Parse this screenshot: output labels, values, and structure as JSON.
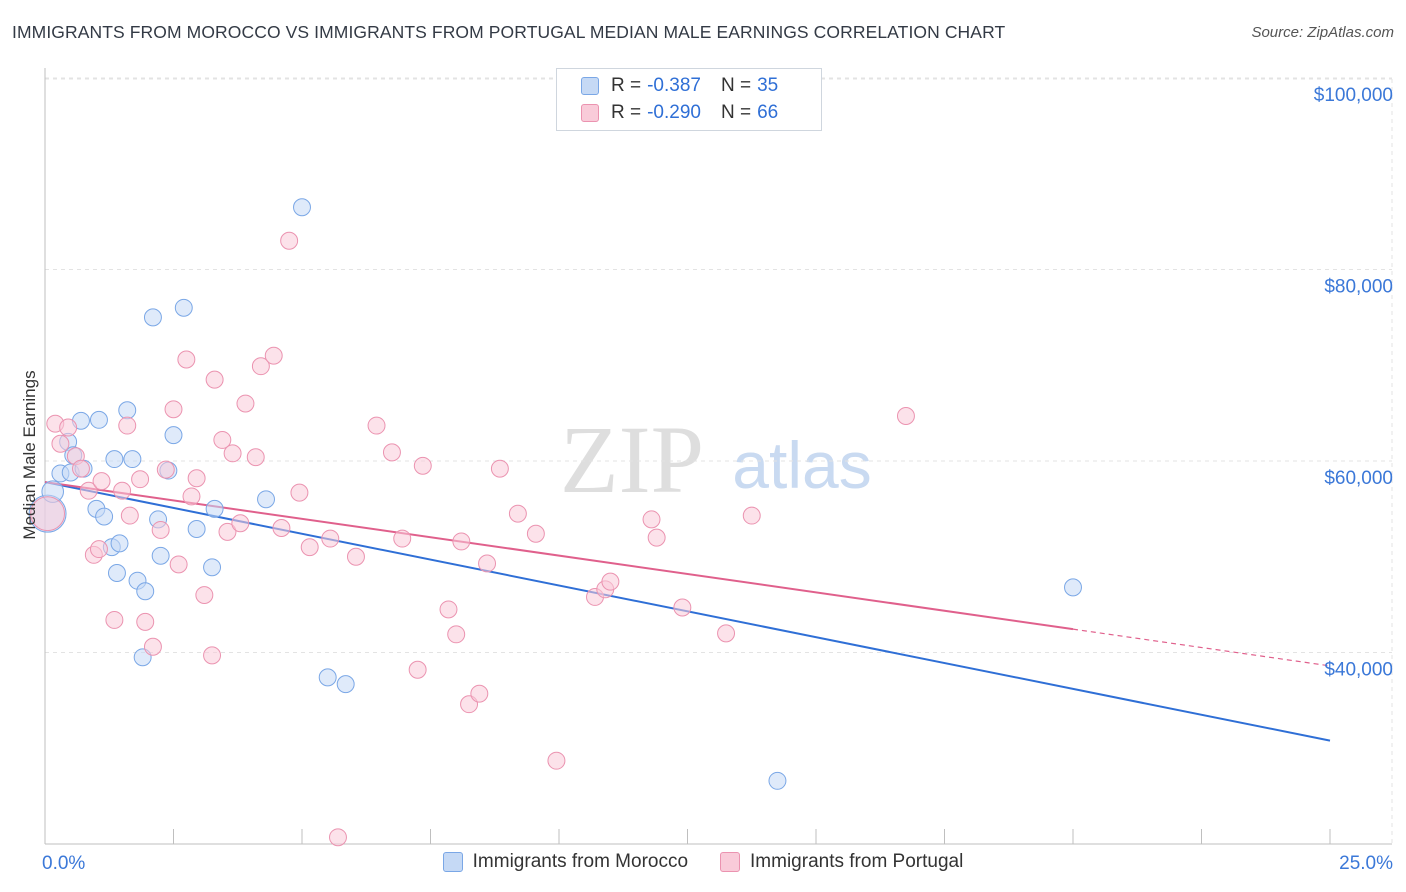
{
  "title": "IMMIGRANTS FROM MOROCCO VS IMMIGRANTS FROM PORTUGAL MEDIAN MALE EARNINGS CORRELATION CHART",
  "source": "Source: ZipAtlas.com",
  "watermark": {
    "zip": "ZIP",
    "atlas": "atlas"
  },
  "legend": {
    "r_label": "R =",
    "n_label": "N =",
    "rows": [
      {
        "name": "Immigrants from Morocco",
        "r": "-0.387",
        "n": "35",
        "fill": "#c5d9f5",
        "stroke": "#7aa7e6"
      },
      {
        "name": "Immigrants from Portugal",
        "r": "-0.290",
        "n": "66",
        "fill": "#f9cbd9",
        "stroke": "#eb93b0"
      }
    ]
  },
  "colors": {
    "blue": "#2f6fd6",
    "pink": "#e0608c",
    "grid": "#e3e3e3",
    "axis_text": "#3b78d8"
  },
  "chart_data": {
    "type": "scatter",
    "title": "IMMIGRANTS FROM MOROCCO VS IMMIGRANTS FROM PORTUGAL MEDIAN MALE EARNINGS CORRELATION CHART",
    "xlabel": "",
    "ylabel": "Median Male Earnings",
    "xlim": [
      0,
      25
    ],
    "ylim": [
      20000,
      102000
    ],
    "x_tick_labels": [
      "0.0%",
      "25.0%"
    ],
    "y_ticks": [
      40000,
      60000,
      80000,
      100000
    ],
    "y_tick_labels": [
      "$40,000",
      "$60,000",
      "$80,000",
      "$100,000"
    ],
    "series": [
      {
        "name": "Immigrants from Morocco",
        "color": "#7aa7e6",
        "fill": "#c5d9f5",
        "points": [
          [
            0.05,
            54500,
            24
          ],
          [
            0.15,
            56800,
            14
          ],
          [
            0.3,
            58700,
            11
          ],
          [
            0.45,
            62000,
            11
          ],
          [
            0.5,
            58800,
            11
          ],
          [
            0.55,
            60600,
            11
          ],
          [
            0.7,
            64200,
            11
          ],
          [
            0.75,
            59200,
            11
          ],
          [
            1.0,
            55000,
            11
          ],
          [
            1.15,
            54200,
            11
          ],
          [
            1.3,
            51000,
            11
          ],
          [
            1.35,
            60200,
            11
          ],
          [
            1.4,
            48300,
            11
          ],
          [
            1.45,
            51400,
            11
          ],
          [
            1.05,
            64300,
            11
          ],
          [
            1.6,
            65300,
            11
          ],
          [
            1.7,
            60200,
            11
          ],
          [
            1.8,
            47500,
            11
          ],
          [
            1.9,
            39500,
            11
          ],
          [
            1.95,
            46400,
            11
          ],
          [
            2.1,
            75000,
            11
          ],
          [
            2.2,
            53900,
            11
          ],
          [
            2.25,
            50100,
            11
          ],
          [
            2.4,
            59000,
            11
          ],
          [
            2.5,
            62700,
            11
          ],
          [
            2.7,
            76000,
            11
          ],
          [
            2.95,
            52900,
            11
          ],
          [
            3.25,
            48900,
            11
          ],
          [
            3.3,
            55000,
            11
          ],
          [
            4.3,
            56000,
            11
          ],
          [
            5.0,
            86500,
            11
          ],
          [
            5.5,
            37400,
            11
          ],
          [
            5.85,
            36700,
            11
          ],
          [
            14.25,
            26600,
            11
          ],
          [
            20.0,
            46800,
            11
          ]
        ],
        "trend": {
          "x": [
            0,
            25
          ],
          "y": [
            57800,
            30800
          ],
          "solid_until": 25
        }
      },
      {
        "name": "Immigrants from Portugal",
        "color": "#eb93b0",
        "fill": "#f9cbd9",
        "points": [
          [
            0.05,
            54500,
            22
          ],
          [
            0.2,
            63900,
            11
          ],
          [
            0.3,
            61800,
            11
          ],
          [
            0.45,
            63500,
            11
          ],
          [
            0.6,
            60500,
            11
          ],
          [
            0.7,
            59200,
            11
          ],
          [
            0.85,
            56900,
            11
          ],
          [
            0.95,
            50200,
            11
          ],
          [
            1.05,
            50800,
            11
          ],
          [
            1.1,
            57900,
            11
          ],
          [
            1.35,
            43400,
            11
          ],
          [
            1.5,
            56900,
            11
          ],
          [
            1.6,
            63700,
            11
          ],
          [
            1.65,
            54300,
            11
          ],
          [
            1.85,
            58100,
            11
          ],
          [
            1.95,
            43200,
            11
          ],
          [
            2.1,
            40600,
            11
          ],
          [
            2.25,
            52800,
            11
          ],
          [
            2.35,
            59100,
            11
          ],
          [
            2.5,
            65400,
            11
          ],
          [
            2.6,
            49200,
            11
          ],
          [
            2.75,
            70600,
            11
          ],
          [
            2.85,
            56300,
            11
          ],
          [
            2.95,
            58200,
            11
          ],
          [
            3.1,
            46000,
            11
          ],
          [
            3.25,
            39700,
            11
          ],
          [
            3.3,
            68500,
            11
          ],
          [
            3.45,
            62200,
            11
          ],
          [
            3.55,
            52600,
            11
          ],
          [
            3.65,
            60800,
            11
          ],
          [
            3.8,
            53500,
            11
          ],
          [
            3.9,
            66000,
            11
          ],
          [
            4.1,
            60400,
            11
          ],
          [
            4.2,
            69900,
            11
          ],
          [
            4.45,
            71000,
            11
          ],
          [
            4.6,
            53000,
            11
          ],
          [
            4.75,
            83000,
            11
          ],
          [
            4.95,
            56700,
            11
          ],
          [
            5.15,
            51000,
            11
          ],
          [
            5.55,
            51900,
            11
          ],
          [
            5.7,
            20700,
            11
          ],
          [
            6.05,
            50000,
            11
          ],
          [
            6.45,
            63700,
            11
          ],
          [
            6.75,
            60900,
            11
          ],
          [
            6.95,
            51900,
            11
          ],
          [
            7.25,
            38200,
            11
          ],
          [
            7.35,
            59500,
            11
          ],
          [
            7.85,
            44500,
            11
          ],
          [
            8.0,
            41900,
            11
          ],
          [
            8.1,
            51600,
            11
          ],
          [
            8.25,
            34600,
            11
          ],
          [
            8.45,
            35700,
            11
          ],
          [
            8.6,
            49300,
            11
          ],
          [
            8.85,
            59200,
            11
          ],
          [
            9.2,
            54500,
            11
          ],
          [
            9.55,
            52400,
            11
          ],
          [
            9.95,
            28700,
            11
          ],
          [
            10.7,
            45800,
            11
          ],
          [
            10.9,
            46600,
            11
          ],
          [
            11.0,
            47400,
            11
          ],
          [
            11.8,
            53900,
            11
          ],
          [
            11.9,
            52000,
            11
          ],
          [
            12.4,
            44700,
            11
          ],
          [
            13.25,
            42000,
            11
          ],
          [
            13.75,
            54300,
            11
          ],
          [
            16.75,
            64700,
            11
          ]
        ],
        "trend": {
          "x": [
            0,
            25
          ],
          "y": [
            57800,
            38600
          ],
          "solid_until": 20
        }
      }
    ]
  }
}
